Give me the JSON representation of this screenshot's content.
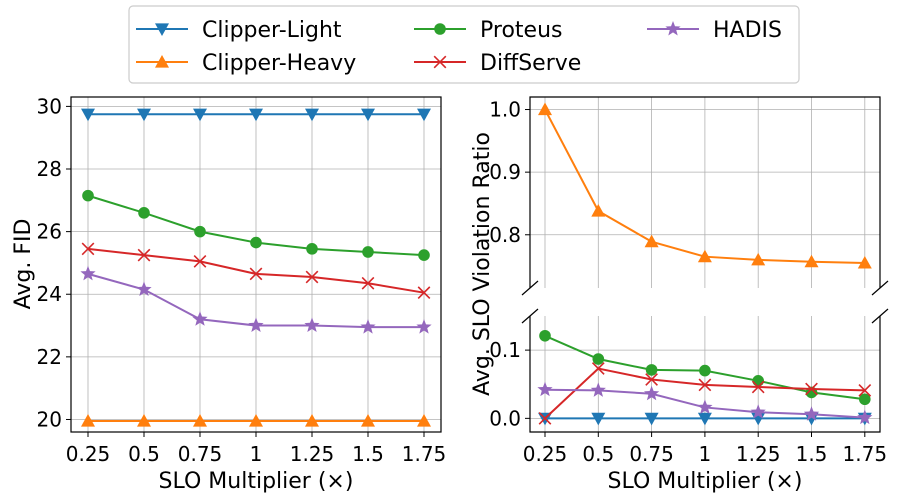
{
  "legend": {
    "placement": "top-center",
    "columns": 3,
    "entries": [
      {
        "label": "Clipper-Light",
        "color": "#1f77b4",
        "marker": "triangle-down"
      },
      {
        "label": "Clipper-Heavy",
        "color": "#ff7f0e",
        "marker": "triangle-up"
      },
      {
        "label": "Proteus",
        "color": "#2ca02c",
        "marker": "circle"
      },
      {
        "label": "DiffServe",
        "color": "#d62728",
        "marker": "x"
      },
      {
        "label": "HADIS",
        "color": "#9467bd",
        "marker": "star"
      }
    ]
  },
  "chart_data": [
    {
      "type": "line",
      "title": "",
      "xlabel": "SLO Multiplier (×)",
      "ylabel": "Avg. FID",
      "x": [
        "0.25",
        "0.5",
        "0.75",
        "1",
        "1.25",
        "1.5",
        "1.75"
      ],
      "yticks": [
        "20",
        "22",
        "24",
        "26",
        "28",
        "30"
      ],
      "ylim": [
        19.6,
        30.3
      ],
      "grid": true,
      "series": [
        {
          "name": "Clipper-Light",
          "color": "#1f77b4",
          "marker": "triangle-down",
          "values": [
            29.75,
            29.75,
            29.75,
            29.75,
            29.75,
            29.75,
            29.75
          ]
        },
        {
          "name": "Clipper-Heavy",
          "color": "#ff7f0e",
          "marker": "triangle-up",
          "values": [
            19.95,
            19.95,
            19.95,
            19.95,
            19.95,
            19.95,
            19.95
          ]
        },
        {
          "name": "Proteus",
          "color": "#2ca02c",
          "marker": "circle",
          "values": [
            27.15,
            26.6,
            26.0,
            25.65,
            25.45,
            25.35,
            25.25
          ]
        },
        {
          "name": "DiffServe",
          "color": "#d62728",
          "marker": "x",
          "values": [
            25.45,
            25.25,
            25.05,
            24.65,
            24.55,
            24.35,
            24.05
          ]
        },
        {
          "name": "HADIS",
          "color": "#9467bd",
          "marker": "star",
          "values": [
            24.65,
            24.15,
            23.2,
            23.0,
            23.0,
            22.95,
            22.95
          ]
        }
      ]
    },
    {
      "type": "line",
      "title": "",
      "xlabel": "SLO Multiplier (×)",
      "ylabel": "Avg. SLO Violation Ratio",
      "x": [
        "0.25",
        "0.5",
        "0.75",
        "1",
        "1.25",
        "1.5",
        "1.75"
      ],
      "broken_axis": true,
      "upper_ylim": [
        0.715,
        1.02
      ],
      "upper_yticks": [
        "0.8",
        "0.9",
        "1.0"
      ],
      "lower_ylim": [
        -0.02,
        0.15
      ],
      "lower_yticks": [
        "0.0",
        "0.1"
      ],
      "grid": true,
      "series": [
        {
          "name": "Clipper-Light",
          "color": "#1f77b4",
          "marker": "triangle-down",
          "values": [
            0.0,
            0.0,
            0.0,
            0.0,
            0.0,
            0.0,
            0.0
          ]
        },
        {
          "name": "Clipper-Heavy",
          "color": "#ff7f0e",
          "marker": "triangle-up",
          "values": [
            1.0,
            0.838,
            0.789,
            0.765,
            0.76,
            0.757,
            0.755
          ]
        },
        {
          "name": "Proteus",
          "color": "#2ca02c",
          "marker": "circle",
          "values": [
            0.121,
            0.087,
            0.071,
            0.07,
            0.055,
            0.038,
            0.028
          ]
        },
        {
          "name": "DiffServe",
          "color": "#d62728",
          "marker": "x",
          "values": [
            0.0,
            0.073,
            0.057,
            0.049,
            0.046,
            0.043,
            0.041
          ]
        },
        {
          "name": "HADIS",
          "color": "#9467bd",
          "marker": "star",
          "values": [
            0.042,
            0.041,
            0.036,
            0.016,
            0.009,
            0.006,
            0.001
          ]
        }
      ]
    }
  ]
}
